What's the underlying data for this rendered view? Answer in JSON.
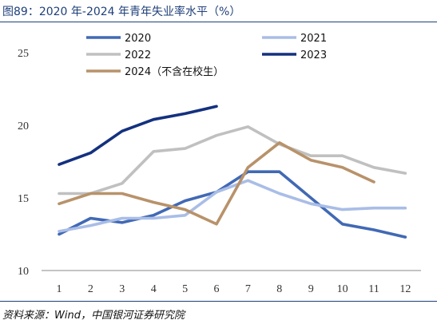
{
  "title": "图89：2020 年-2024 年青年失业率水平（%）",
  "footer": "资料来源：Wind，中国银河证券研究院",
  "chart_data": {
    "type": "line",
    "title": "图89：2020 年-2024 年青年失业率水平（%）",
    "xlabel": "",
    "ylabel": "",
    "x": [
      1,
      2,
      3,
      4,
      5,
      6,
      7,
      8,
      9,
      10,
      11,
      12
    ],
    "x_tick_labels": [
      "1",
      "2",
      "3",
      "4",
      "5",
      "6",
      "7",
      "8",
      "9",
      "10",
      "11",
      "12"
    ],
    "ylim": [
      10,
      25
    ],
    "y_ticks": [
      10,
      15,
      20,
      25
    ],
    "grid": false,
    "legend_position": "top-center",
    "series": [
      {
        "name": "2020",
        "color": "#4169b4",
        "values": [
          12.5,
          13.6,
          13.3,
          13.8,
          14.8,
          15.4,
          16.8,
          16.8,
          15.0,
          13.2,
          12.8,
          12.3
        ]
      },
      {
        "name": "2021",
        "color": "#a9bde6",
        "values": [
          12.7,
          13.1,
          13.6,
          13.6,
          13.8,
          15.4,
          16.2,
          15.3,
          14.6,
          14.2,
          14.3,
          14.3
        ]
      },
      {
        "name": "2022",
        "color": "#c0c0c0",
        "values": [
          15.3,
          15.3,
          16.0,
          18.2,
          18.4,
          19.3,
          19.9,
          18.7,
          17.9,
          17.9,
          17.1,
          16.7
        ]
      },
      {
        "name": "2023",
        "color": "#14317f",
        "values": [
          17.3,
          18.1,
          19.6,
          20.4,
          20.8,
          21.3,
          null,
          null,
          null,
          null,
          null,
          null
        ]
      },
      {
        "name": "2024（不含在校生）",
        "color": "#b8926a",
        "values": [
          14.6,
          15.3,
          15.3,
          14.7,
          14.2,
          13.2,
          17.1,
          18.8,
          17.6,
          17.1,
          16.1,
          null
        ]
      }
    ]
  }
}
